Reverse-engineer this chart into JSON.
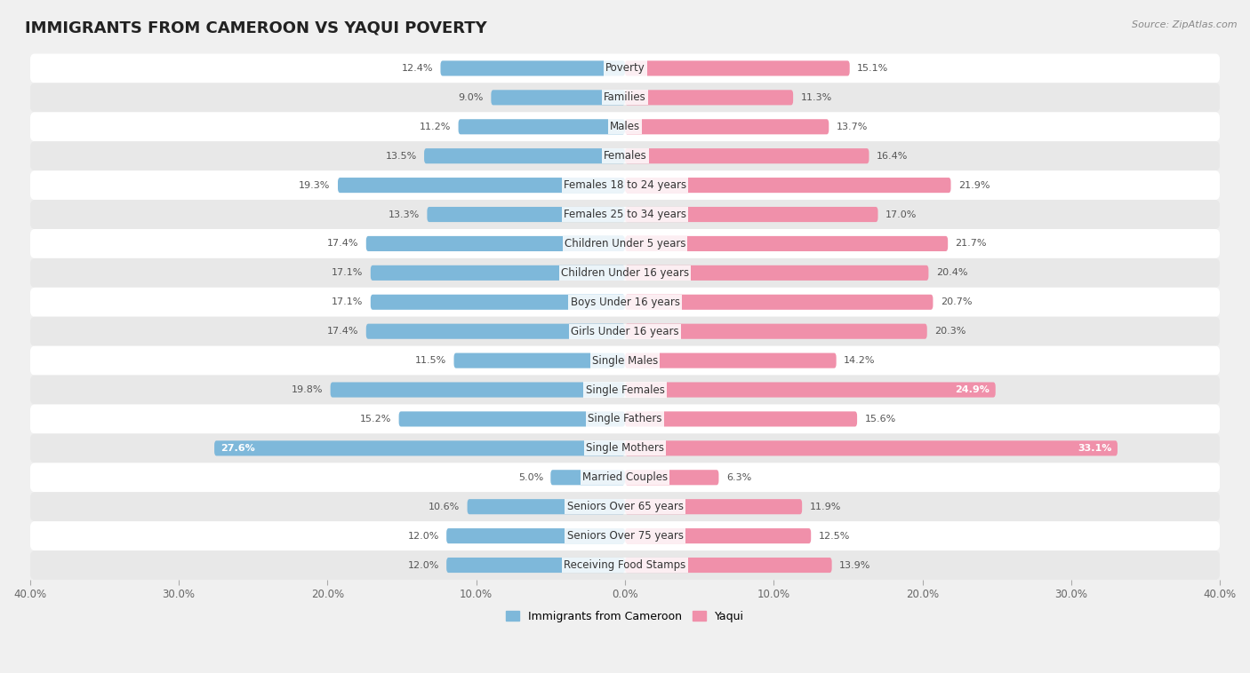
{
  "title": "IMMIGRANTS FROM CAMEROON VS YAQUI POVERTY",
  "source": "Source: ZipAtlas.com",
  "categories": [
    "Poverty",
    "Families",
    "Males",
    "Females",
    "Females 18 to 24 years",
    "Females 25 to 34 years",
    "Children Under 5 years",
    "Children Under 16 years",
    "Boys Under 16 years",
    "Girls Under 16 years",
    "Single Males",
    "Single Females",
    "Single Fathers",
    "Single Mothers",
    "Married Couples",
    "Seniors Over 65 years",
    "Seniors Over 75 years",
    "Receiving Food Stamps"
  ],
  "cameroon_values": [
    12.4,
    9.0,
    11.2,
    13.5,
    19.3,
    13.3,
    17.4,
    17.1,
    17.1,
    17.4,
    11.5,
    19.8,
    15.2,
    27.6,
    5.0,
    10.6,
    12.0,
    12.0
  ],
  "yaqui_values": [
    15.1,
    11.3,
    13.7,
    16.4,
    21.9,
    17.0,
    21.7,
    20.4,
    20.7,
    20.3,
    14.2,
    24.9,
    15.6,
    33.1,
    6.3,
    11.9,
    12.5,
    13.9
  ],
  "cameroon_color": "#7eb8da",
  "yaqui_color": "#f090aa",
  "cameroon_label": "Immigrants from Cameroon",
  "yaqui_label": "Yaqui",
  "axis_limit": 40.0,
  "bg_color": "#f0f0f0",
  "row_colors_odd": "#ffffff",
  "row_colors_even": "#e8e8e8",
  "title_fontsize": 13,
  "label_fontsize": 8.5,
  "value_fontsize": 8.0,
  "bar_height": 0.52,
  "inner_label_threshold_cam": 22.0,
  "inner_label_threshold_yaq": 22.0
}
